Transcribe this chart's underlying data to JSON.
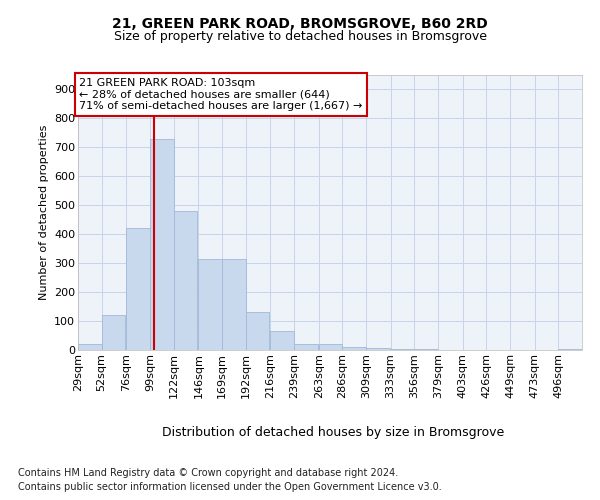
{
  "title": "21, GREEN PARK ROAD, BROMSGROVE, B60 2RD",
  "subtitle": "Size of property relative to detached houses in Bromsgrove",
  "xlabel": "Distribution of detached houses by size in Bromsgrove",
  "ylabel": "Number of detached properties",
  "bar_color": "#c9d9ed",
  "bar_edge_color": "#a0b8d8",
  "background_color": "#ffffff",
  "grid_color": "#c8d4e8",
  "vline_x": 103,
  "vline_color": "#cc0000",
  "annotation_text": "21 GREEN PARK ROAD: 103sqm\n← 28% of detached houses are smaller (644)\n71% of semi-detached houses are larger (1,667) →",
  "annotation_box_color": "#ffffff",
  "annotation_box_edge": "#cc0000",
  "bin_edges": [
    29,
    52,
    76,
    99,
    122,
    146,
    169,
    192,
    216,
    239,
    263,
    286,
    309,
    333,
    356,
    379,
    403,
    426,
    449,
    473,
    496
  ],
  "bin_labels": [
    "29sqm",
    "52sqm",
    "76sqm",
    "99sqm",
    "122sqm",
    "146sqm",
    "169sqm",
    "192sqm",
    "216sqm",
    "239sqm",
    "263sqm",
    "286sqm",
    "309sqm",
    "333sqm",
    "356sqm",
    "379sqm",
    "403sqm",
    "426sqm",
    "449sqm",
    "473sqm",
    "496sqm"
  ],
  "bar_heights": [
    20,
    120,
    420,
    730,
    480,
    315,
    315,
    130,
    65,
    22,
    20,
    10,
    8,
    5,
    3,
    0,
    0,
    0,
    0,
    0,
    5
  ],
  "ylim": [
    0,
    950
  ],
  "yticks": [
    0,
    100,
    200,
    300,
    400,
    500,
    600,
    700,
    800,
    900
  ],
  "footer_line1": "Contains HM Land Registry data © Crown copyright and database right 2024.",
  "footer_line2": "Contains public sector information licensed under the Open Government Licence v3.0.",
  "title_fontsize": 10,
  "subtitle_fontsize": 9,
  "xlabel_fontsize": 9,
  "ylabel_fontsize": 8,
  "tick_fontsize": 8,
  "footer_fontsize": 7,
  "annot_fontsize": 8
}
